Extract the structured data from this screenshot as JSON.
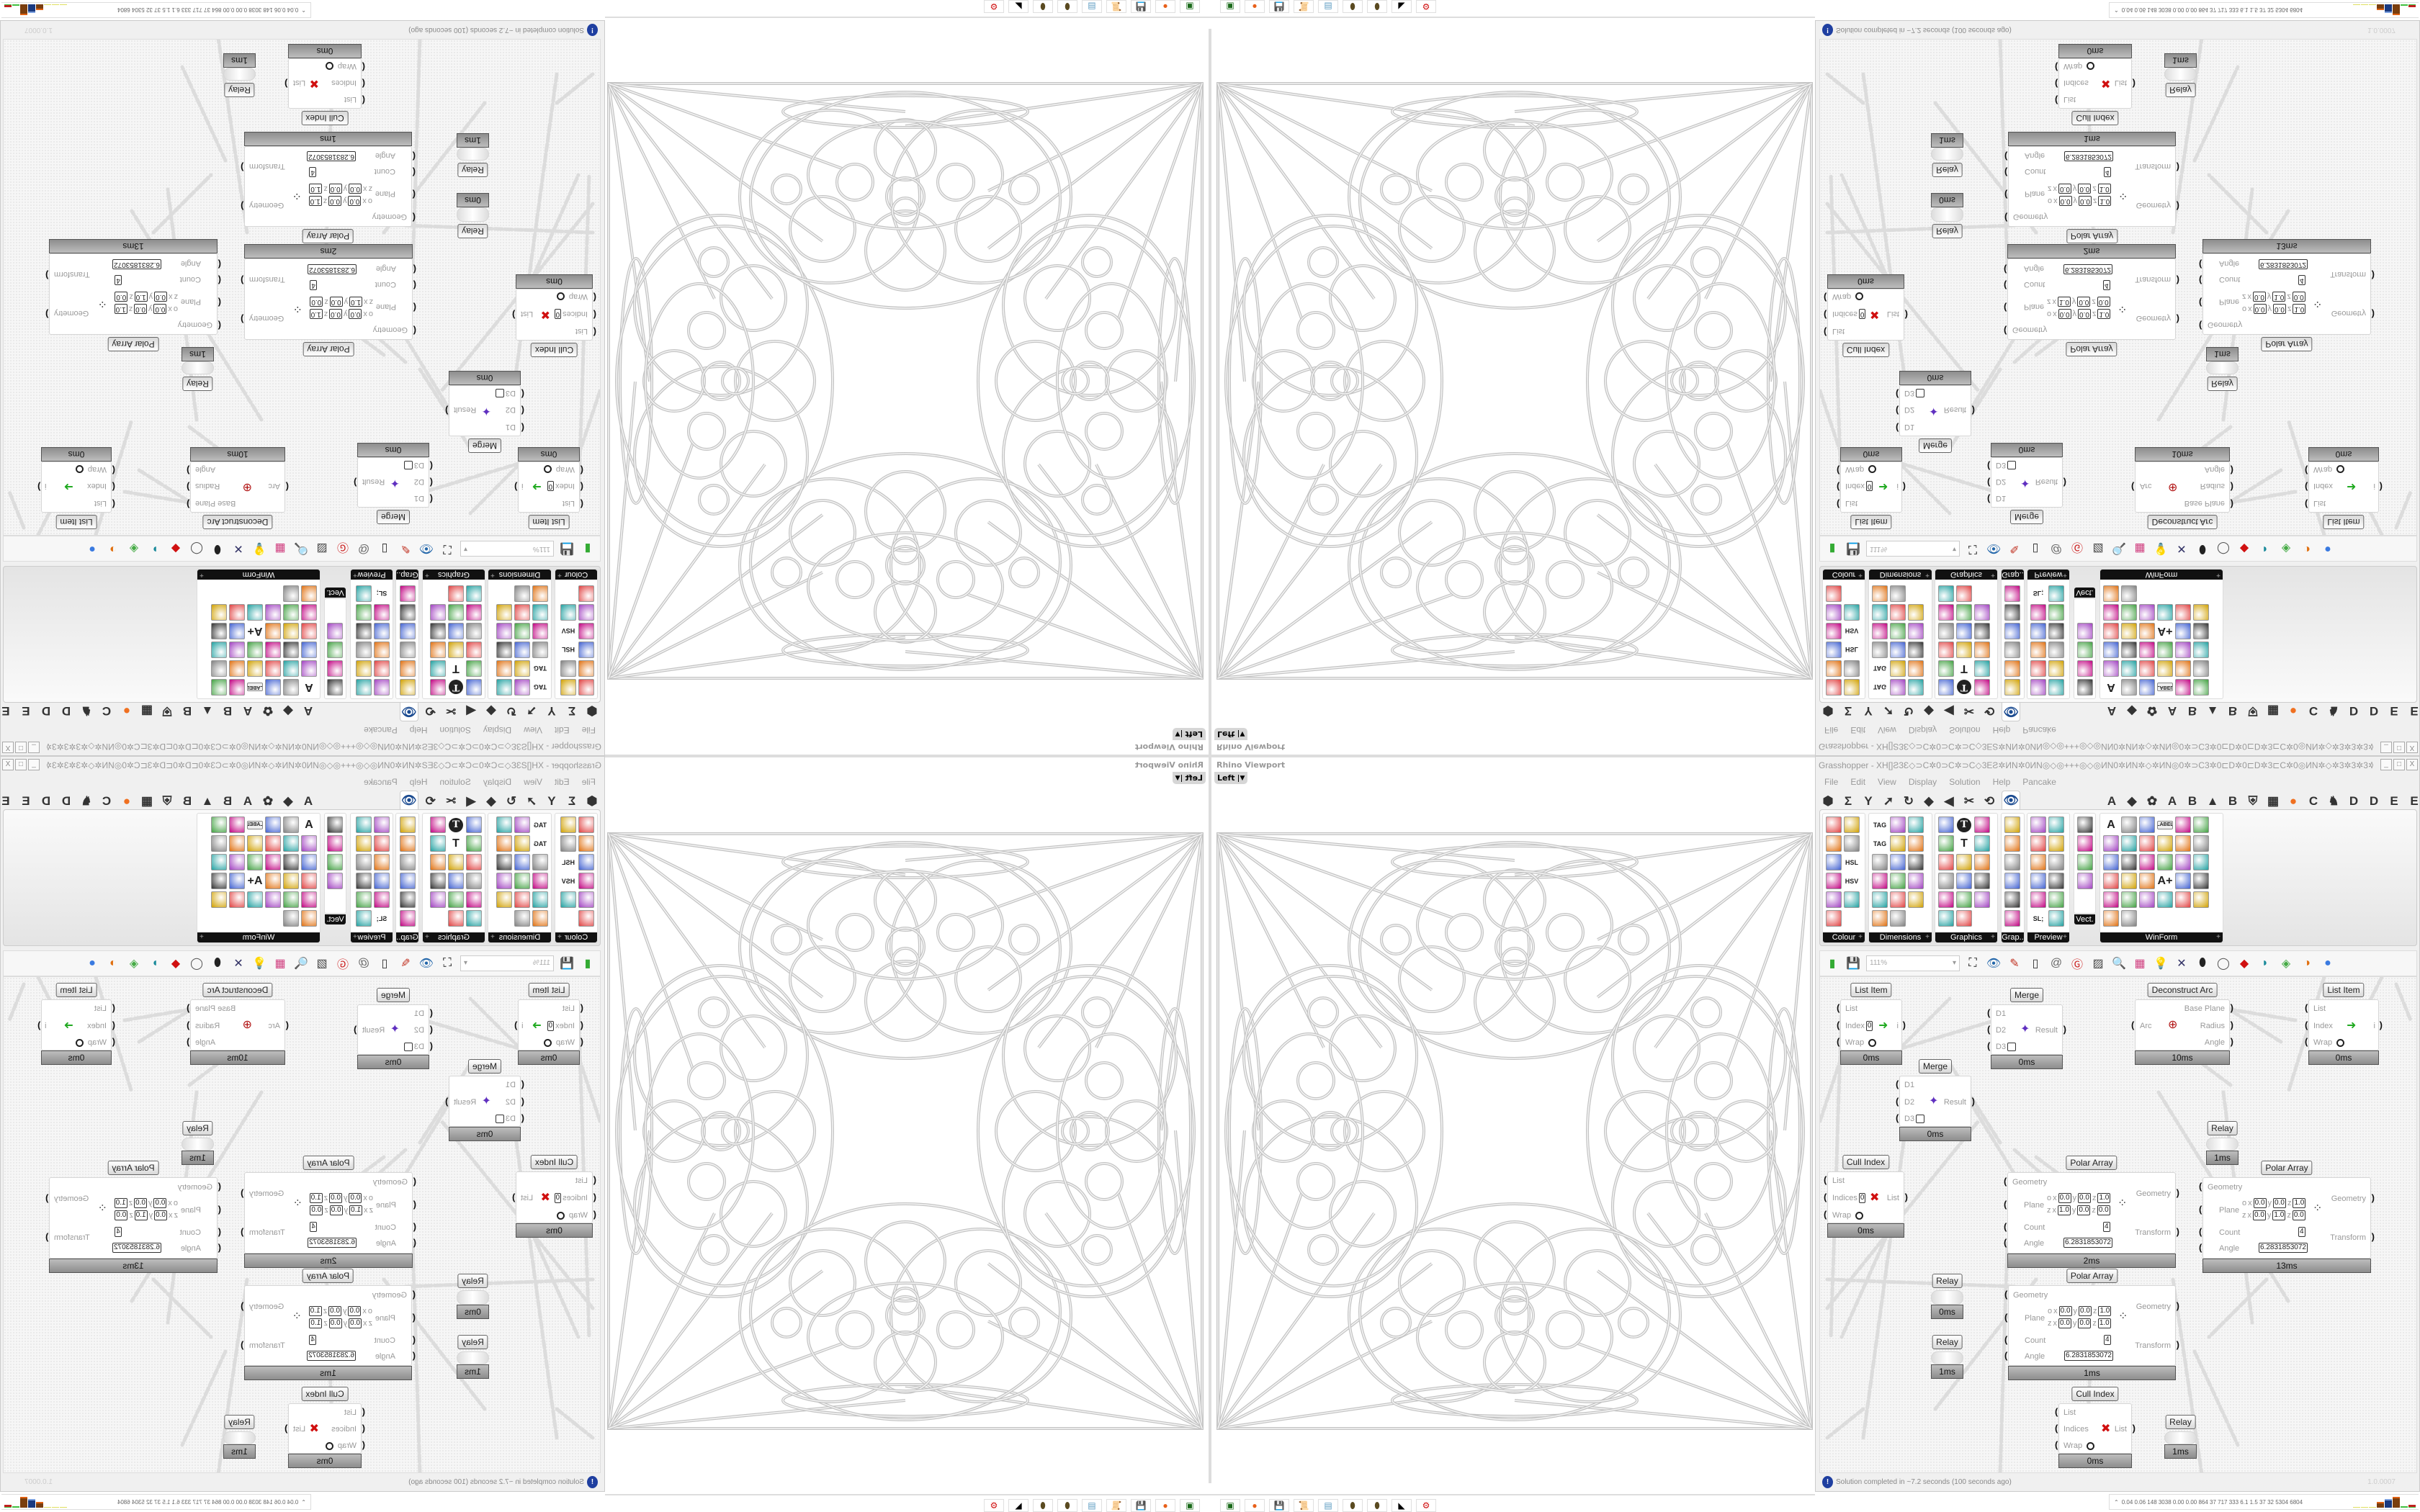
{
  "viewport": {
    "title": "Rhino Viewport",
    "view": "Left",
    "dropdown_icon": "chevron-down-icon"
  },
  "grasshopper": {
    "title": "Grasshopper - XH[]Ƨ3Ɛ◇⊃C✲0⊃C✲⊃C◇3EƧ✲ИN✲0ИN◎◇◎+++◎◇◎ИN0✲ИN✲◇✲ИN◎0✲⊃C3✲0⊏D✲0⊏D✲3⊏C✲0◎ИN✲◇✲3✲3✲3✲++Ƨ✲⊞3✲3✲◇✲✲⊃C3✲✲⊃C",
    "window_buttons": [
      "_",
      "□",
      "X"
    ],
    "menu": [
      "File",
      "Edit",
      "View",
      "Display",
      "Solution",
      "Help",
      "Pancake"
    ],
    "tab_row": [
      "⬢",
      "Σ",
      "Y",
      "➚",
      "↻",
      "◆",
      "◀",
      "✂",
      "⟲",
      "👁",
      "A",
      "◆",
      "✿",
      "A",
      "B",
      "▲",
      "B",
      "⛨",
      "▦",
      "●",
      "C",
      "♞",
      "D",
      "D",
      "E",
      "E",
      "▣",
      "E"
    ],
    "palette_groups": [
      {
        "label": "Colour",
        "cols": 2,
        "icons": [
          "colour-wheel",
          "gradient",
          "rgb-cube",
          "hue-triangle",
          "green-cube",
          "HSL",
          "red-sphere",
          "HSV",
          "red-sphere-2",
          "prism",
          "gradient-swatch"
        ]
      },
      {
        "label": "Dimensions",
        "cols": 3,
        "icons": [
          "TAG",
          "linear-dim",
          "angle-dim",
          "TAG",
          "line-dim",
          "ordinate",
          "magenta-swatch",
          "multi-dim",
          "bracket-dim",
          "grid-dim",
          "tri-dim",
          "arrow-dim",
          "arc-dim",
          "pencil-dim",
          "leader",
          "diag-dim",
          "warning-dim"
        ]
      },
      {
        "label": "Graphics",
        "cols": 3,
        "icons": [
          "circle",
          "T-circle",
          "eye-circle",
          "dot-ring",
          "T",
          "square-ring",
          "blur",
          "list-circle",
          "gear",
          "ring",
          "link",
          "flask",
          "grey-sphere",
          "dot-circle",
          "save-gear",
          "dark-sphere",
          "mountain"
        ]
      },
      {
        "label": "Grap..",
        "cols": 1,
        "icons": [
          "bar-chart",
          "legend",
          "pie",
          "line-chart",
          "layers",
          "chart-2"
        ]
      },
      {
        "label": "Preview",
        "cols": 2,
        "icons": [
          "egg",
          "camera",
          "sphere-pic",
          "trees",
          "blobs",
          "heart-mesh",
          "dots",
          "heart-green",
          "gradient-box",
          "hearts",
          "SL;",
          "tree-pic"
        ]
      },
      {
        "label": "Vect.",
        "cols": 1,
        "icons": [
          "sort",
          "path",
          "arrows-red",
          "arrows-green"
        ]
      },
      {
        "label": "WinForm",
        "cols": 6,
        "icons": [
          "A",
          "list-form",
          "text-form",
          "LABEL",
          "chart-form",
          "grid-form",
          "hatch",
          "slider",
          "track",
          "table",
          "pie-form",
          "panel",
          "check",
          "text-lines",
          "image",
          "pie-2",
          "chat",
          "combo",
          "num",
          "package",
          "media",
          "A+",
          "ok",
          "toggle",
          "bar",
          "list-2",
          "window",
          "calendar",
          "scroll",
          "progress",
          "bars",
          "next"
        ]
      }
    ],
    "toolbar": {
      "zoom": "111%",
      "icons": [
        "new-file-icon",
        "save-icon",
        "zoom-extents-icon",
        "preview-eye-icon",
        "sketch-icon",
        "plugin-icon",
        "email-icon",
        "gha-icon",
        "image-icon",
        "search-icon",
        "package-icon",
        "bulb-icon",
        "dna-icon",
        "grip-icon",
        "ring-icon",
        "red-gem-icon",
        "teal-icon",
        "green-icon",
        "orange-ball-icon",
        "blue-ball-icon"
      ]
    },
    "nodes": [
      {
        "type": "List Item",
        "inputs": [
          {
            "label": "List"
          },
          {
            "label": "Index",
            "value": "0"
          },
          {
            "label": "Wrap",
            "toggle": true
          }
        ],
        "outputs": [
          {
            "label": "i"
          }
        ],
        "time": "0ms",
        "icon": "list-item-icon"
      },
      {
        "type": "Merge",
        "inputs": [
          {
            "label": "D1"
          },
          {
            "label": "D2"
          },
          {
            "label": "D3",
            "empty": true
          }
        ],
        "outputs": [
          {
            "label": "Result"
          }
        ],
        "time": "0ms",
        "icon": "merge-icon"
      },
      {
        "type": "Deconstruct Arc",
        "inputs": [
          {
            "label": "Arc"
          }
        ],
        "outputs": [
          {
            "label": "Base Plane"
          },
          {
            "label": "Radius"
          },
          {
            "label": "Angle"
          }
        ],
        "time": "10ms",
        "icon": "arc-target-icon"
      },
      {
        "type": "List Item",
        "inputs": [
          {
            "label": "List"
          },
          {
            "label": "Index"
          },
          {
            "label": "Wrap",
            "toggle": true
          }
        ],
        "outputs": [
          {
            "label": "i"
          }
        ],
        "time": "0ms",
        "icon": "list-item-icon"
      },
      {
        "type": "Merge",
        "inputs": [
          {
            "label": "D1"
          },
          {
            "label": "D2"
          },
          {
            "label": "D3",
            "empty": true
          }
        ],
        "outputs": [
          {
            "label": "Result"
          }
        ],
        "time": "0ms",
        "icon": "merge-icon"
      },
      {
        "type": "Relay",
        "inputs": [],
        "outputs": [],
        "time": "1ms"
      },
      {
        "type": "Cull Index",
        "inputs": [
          {
            "label": "List"
          },
          {
            "label": "Indices",
            "value": "0"
          },
          {
            "label": "Wrap",
            "toggle": true
          }
        ],
        "outputs": [
          {
            "label": "List"
          }
        ],
        "time": "0ms",
        "icon": "cull-icon"
      },
      {
        "type": "Polar Array",
        "inputs": [
          {
            "label": "Geometry"
          },
          {
            "label": "Plane",
            "origin": [
              "0.0",
              "0.0",
              "1.0"
            ],
            "zaxis": [
              "1.0",
              "0.0",
              "0.0"
            ]
          },
          {
            "label": "Count",
            "value": "4"
          },
          {
            "label": "Angle",
            "value": "6.2831853072"
          }
        ],
        "outputs": [
          {
            "label": "Geometry"
          },
          {
            "label": "Transform"
          }
        ],
        "time": "2ms"
      },
      {
        "type": "Polar Array",
        "inputs": [
          {
            "label": "Geometry"
          },
          {
            "label": "Plane",
            "origin": [
              "0.0",
              "0.0",
              "1.0"
            ],
            "zaxis": [
              "0.0",
              "1.0",
              "0.0"
            ]
          },
          {
            "label": "Count",
            "value": "4"
          },
          {
            "label": "Angle",
            "value": "6.2831853072"
          }
        ],
        "outputs": [
          {
            "label": "Geometry"
          },
          {
            "label": "Transform"
          }
        ],
        "time": "13ms"
      },
      {
        "type": "Polar Array",
        "inputs": [
          {
            "label": "Geometry"
          },
          {
            "label": "Plane",
            "origin": [
              "0.0",
              "0.0",
              "1.0"
            ],
            "zaxis": [
              "0.0",
              "0.0",
              "1.0"
            ]
          },
          {
            "label": "Count",
            "value": "4"
          },
          {
            "label": "Angle",
            "value": "6.2831853072"
          }
        ],
        "outputs": [
          {
            "label": "Geometry"
          },
          {
            "label": "Transform"
          }
        ],
        "time": "1ms"
      },
      {
        "type": "Relay",
        "inputs": [],
        "outputs": [],
        "time": "0ms"
      },
      {
        "type": "Relay",
        "inputs": [],
        "outputs": [],
        "time": "1ms"
      },
      {
        "type": "Cull Index",
        "inputs": [
          {
            "label": "List"
          },
          {
            "label": "Indices"
          },
          {
            "label": "Wrap",
            "toggle": true
          }
        ],
        "outputs": [
          {
            "label": "List"
          }
        ],
        "time": "0ms",
        "icon": "cull-icon"
      },
      {
        "type": "Relay",
        "inputs": [],
        "outputs": [],
        "time": "1ms"
      }
    ],
    "status": {
      "message": "Solution completed in ~7.2 seconds (100 seconds ago)",
      "version": "1.0.0007"
    },
    "stats": "0.04 0.06 148 3038 0.00 0.00 864  37  717  333  6.1  1.5  37  32  5304 6804"
  },
  "taskbar": [
    "terminal-icon",
    "firefox-icon",
    "floppy-64-icon",
    "scroll-icon",
    "notepad-icon",
    "bug-icon",
    "bug-icon",
    "rhino-icon",
    "red-gear-icon"
  ],
  "taskbar_labels": {
    "floppy": "64"
  }
}
